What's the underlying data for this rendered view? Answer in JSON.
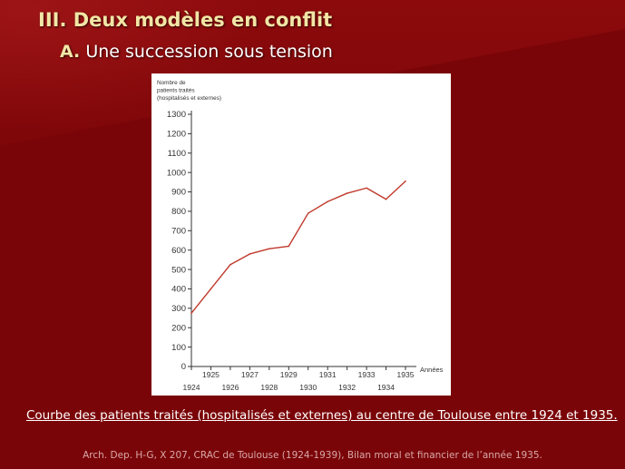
{
  "slide": {
    "title": "III. Deux modèles en conflit",
    "subtitle_letter": "A.",
    "subtitle_text": "Une succession sous tension",
    "caption": "Courbe des patients traités (hospitalisés et externes) au centre de Toulouse entre 1924 et 1935.",
    "source": "Arch. Dep. H-G, X 207, CRAC de Toulouse (1924-1939), Bilan moral et financier de l’année 1935.",
    "colors": {
      "background": "#7a0508",
      "title": "#f2e6a6",
      "line": "#c0392b"
    }
  },
  "chart_data": {
    "type": "line",
    "ylabel_lines": [
      "Nombre de",
      "patients traités",
      "(hospitalisés et externes)"
    ],
    "xlabel": "Années",
    "x": [
      1924,
      1925,
      1926,
      1927,
      1928,
      1929,
      1930,
      1931,
      1932,
      1933,
      1934,
      1935
    ],
    "values": [
      275,
      400,
      525,
      580,
      607,
      620,
      790,
      850,
      893,
      920,
      862,
      955
    ],
    "x_ticks_low": [
      "1924",
      "1926",
      "1928",
      "1930",
      "1932",
      "1934"
    ],
    "x_ticks_high": [
      "1925",
      "1927",
      "1929",
      "1931",
      "1933",
      "1935"
    ],
    "y_ticks": [
      "0",
      "100",
      "200",
      "300",
      "400",
      "500",
      "600",
      "700",
      "800",
      "900",
      "1000",
      "1100",
      "1200",
      "1300"
    ],
    "ylim": [
      0,
      1300
    ],
    "xlim": [
      1924,
      1935
    ],
    "grid": false
  }
}
